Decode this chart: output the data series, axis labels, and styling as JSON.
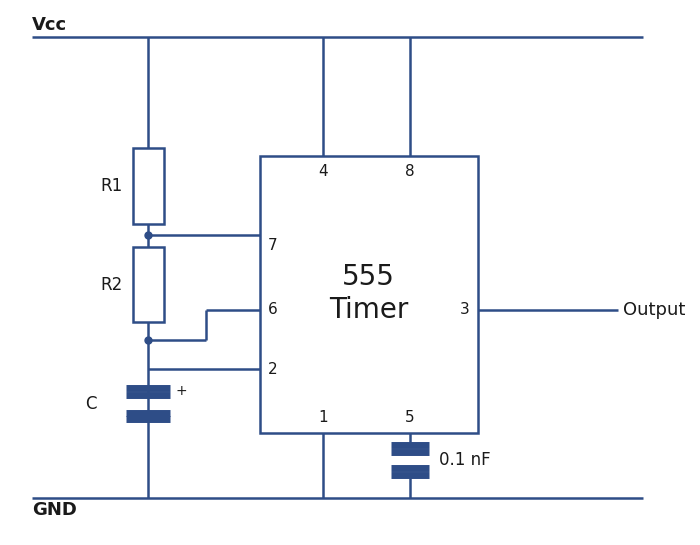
{
  "bg_color": "#ffffff",
  "line_color": "#2e4d87",
  "line_width": 1.8,
  "text_color": "#1a1a1a",
  "fig_width": 7.0,
  "fig_height": 5.45,
  "vcc_label": "Vcc",
  "gnd_label": "GND",
  "ic_label_line1": "555",
  "ic_label_line2": "Timer",
  "output_label": "Output",
  "r1_label": "R1",
  "r2_label": "R2",
  "c_label": "C",
  "c2_label": "0.1 nF"
}
